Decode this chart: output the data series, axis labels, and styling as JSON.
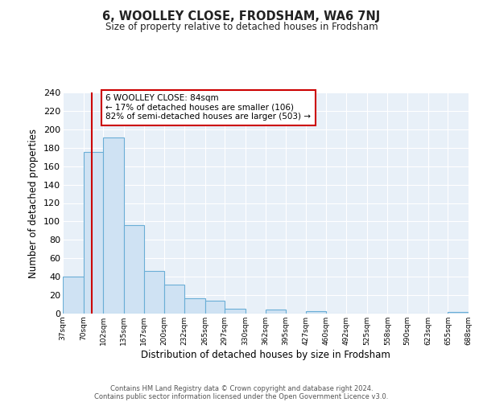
{
  "title": "6, WOOLLEY CLOSE, FRODSHAM, WA6 7NJ",
  "subtitle": "Size of property relative to detached houses in Frodsham",
  "xlabel": "Distribution of detached houses by size in Frodsham",
  "ylabel": "Number of detached properties",
  "bar_edges": [
    37,
    70,
    102,
    135,
    167,
    200,
    232,
    265,
    297,
    330,
    362,
    395,
    427,
    460,
    492,
    525,
    558,
    590,
    623,
    655,
    688
  ],
  "bar_heights": [
    40,
    175,
    191,
    96,
    46,
    31,
    17,
    14,
    5,
    0,
    4,
    0,
    3,
    0,
    0,
    0,
    0,
    0,
    0,
    2
  ],
  "bar_color": "#cfe2f3",
  "bar_edge_color": "#6aaed6",
  "background_color": "#e8f0f8",
  "grid_color": "#ffffff",
  "vline_x": 84,
  "vline_color": "#cc0000",
  "ylim": [
    0,
    240
  ],
  "yticks": [
    0,
    20,
    40,
    60,
    80,
    100,
    120,
    140,
    160,
    180,
    200,
    220,
    240
  ],
  "annotation_title": "6 WOOLLEY CLOSE: 84sqm",
  "annotation_line1": "← 17% of detached houses are smaller (106)",
  "annotation_line2": "82% of semi-detached houses are larger (503) →",
  "annotation_box_color": "#ffffff",
  "annotation_box_edge_color": "#cc0000",
  "fig_background": "#ffffff",
  "footer_line1": "Contains HM Land Registry data © Crown copyright and database right 2024.",
  "footer_line2": "Contains public sector information licensed under the Open Government Licence v3.0."
}
